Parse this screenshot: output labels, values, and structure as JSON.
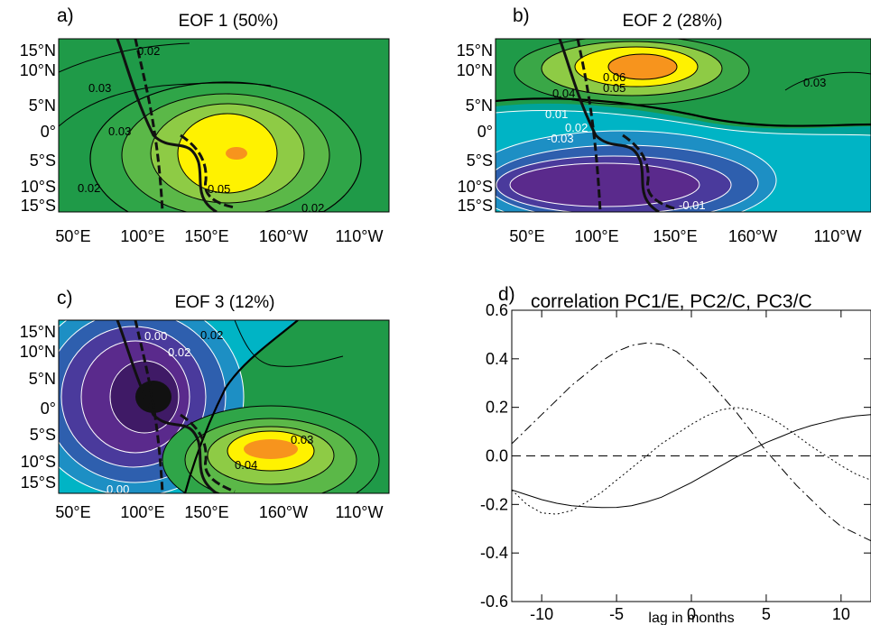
{
  "maps": [
    {
      "panel_label": "a)",
      "title": "EOF 1 (50%)",
      "lat_ticks": [
        "15°N",
        "10°N",
        "5°N",
        "0°",
        "5°S",
        "10°S",
        "15°S"
      ],
      "lon_ticks": [
        "50°E",
        "100°E",
        "150°E",
        "160°W",
        "110°W"
      ],
      "contour_labels": [
        "0.02",
        "0.03",
        "0.03",
        "0.05",
        "0.02",
        "0.02"
      ]
    },
    {
      "panel_label": "b)",
      "title": "EOF 2 (28%)",
      "lat_ticks": [
        "15°N",
        "10°N",
        "5°N",
        "0°",
        "5°S",
        "10°S",
        "15°S"
      ],
      "lon_ticks": [
        "50°E",
        "100°E",
        "150°E",
        "160°W",
        "110°W"
      ],
      "contour_labels": [
        "0.06",
        "0.05",
        "0.04",
        "0.03",
        "0.01",
        "0.02",
        "-0.03",
        "-0.01"
      ]
    },
    {
      "panel_label": "c)",
      "title": "EOF 3 (12%)",
      "lat_ticks": [
        "15°N",
        "10°N",
        "5°N",
        "0°",
        "5°S",
        "10°S",
        "15°S"
      ],
      "lon_ticks": [
        "50°E",
        "100°E",
        "150°E",
        "160°W",
        "110°W"
      ],
      "contour_labels": [
        "0.00",
        "0.02",
        "0.02",
        "0.03",
        "0.04",
        "0.00"
      ]
    }
  ],
  "chart_data": {
    "type": "line",
    "panel_label": "d)",
    "title": "correlation PC1/E, PC2/C, PC3/C",
    "xlabel": "lag in months",
    "ylabel": "",
    "xlim": [
      -12,
      12
    ],
    "ylim": [
      -0.6,
      0.6
    ],
    "xticks": [
      "-10",
      "-5",
      "0",
      "5",
      "10"
    ],
    "yticks": [
      "0.6",
      "0.4",
      "0.2",
      "0.0",
      "-0.2",
      "-0.4",
      "-0.6"
    ],
    "x": [
      -12,
      -11,
      -10,
      -9,
      -8,
      -7,
      -6,
      -5,
      -4,
      -3,
      -2,
      -1,
      0,
      1,
      2,
      3,
      4,
      5,
      6,
      7,
      8,
      9,
      10,
      11,
      12
    ],
    "series": [
      {
        "style": "solid",
        "values": [
          -0.14,
          -0.16,
          -0.18,
          -0.195,
          -0.205,
          -0.21,
          -0.213,
          -0.212,
          -0.205,
          -0.19,
          -0.17,
          -0.14,
          -0.11,
          -0.075,
          -0.04,
          -0.005,
          0.025,
          0.055,
          0.08,
          0.105,
          0.125,
          0.14,
          0.155,
          0.165,
          0.17
        ]
      },
      {
        "style": "dotted",
        "values": [
          -0.14,
          -0.2,
          -0.235,
          -0.24,
          -0.225,
          -0.19,
          -0.15,
          -0.1,
          -0.05,
          0.0,
          0.05,
          0.09,
          0.13,
          0.165,
          0.19,
          0.2,
          0.19,
          0.165,
          0.13,
          0.085,
          0.04,
          0.0,
          -0.04,
          -0.075,
          -0.1
        ]
      },
      {
        "style": "dashdot",
        "values": [
          0.05,
          0.11,
          0.17,
          0.23,
          0.29,
          0.34,
          0.39,
          0.43,
          0.455,
          0.465,
          0.46,
          0.43,
          0.38,
          0.32,
          0.25,
          0.18,
          0.1,
          0.02,
          -0.05,
          -0.12,
          -0.18,
          -0.24,
          -0.29,
          -0.32,
          -0.35
        ]
      },
      {
        "style": "dashed",
        "values": [
          0,
          0,
          0,
          0,
          0,
          0,
          0,
          0,
          0,
          0,
          0,
          0,
          0,
          0,
          0,
          0,
          0,
          0,
          0,
          0,
          0,
          0,
          0,
          0,
          0
        ]
      }
    ]
  },
  "colors": {
    "green_bg": "#1f9a48",
    "light_green": "#8ecb45",
    "yellow": "#fff200",
    "orange": "#f7941d",
    "cyan": "#00b4c5",
    "teal": "#00a39a",
    "purple": "#5a2a8c",
    "dark_purple": "#2e0a4a"
  }
}
